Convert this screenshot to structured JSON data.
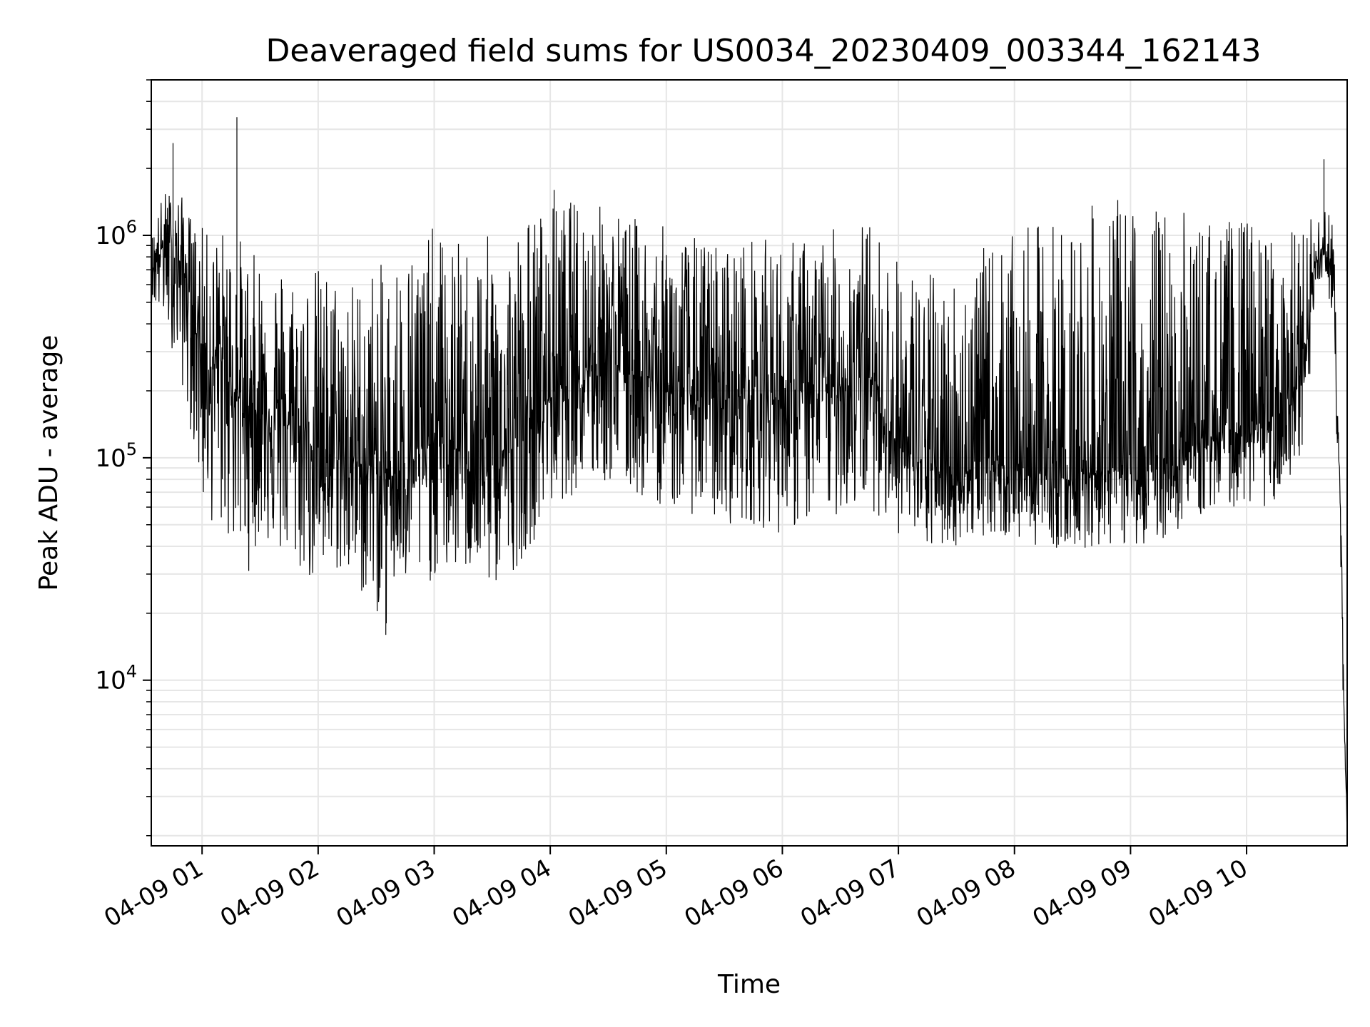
{
  "chart_data": {
    "type": "line",
    "title": "Deaveraged field sums for US0034_20230409_003344_162143",
    "xlabel": "Time",
    "ylabel": "Peak ADU - average",
    "yscale": "log",
    "ylim": [
      1800,
      5000000
    ],
    "xlim": [
      "2023-04-09 00:33:44",
      "2023-04-09 10:52:00"
    ],
    "grid": true,
    "line_color": "#000000",
    "grid_color": "#e6e6e6",
    "x_ticks": [
      {
        "t": "2023-04-09 01:00",
        "label": "04-09 01"
      },
      {
        "t": "2023-04-09 02:00",
        "label": "04-09 02"
      },
      {
        "t": "2023-04-09 03:00",
        "label": "04-09 03"
      },
      {
        "t": "2023-04-09 04:00",
        "label": "04-09 04"
      },
      {
        "t": "2023-04-09 05:00",
        "label": "04-09 05"
      },
      {
        "t": "2023-04-09 06:00",
        "label": "04-09 06"
      },
      {
        "t": "2023-04-09 07:00",
        "label": "04-09 07"
      },
      {
        "t": "2023-04-09 08:00",
        "label": "04-09 08"
      },
      {
        "t": "2023-04-09 09:00",
        "label": "04-09 09"
      },
      {
        "t": "2023-04-09 10:00",
        "label": "04-09 10"
      }
    ],
    "y_ticks": [
      {
        "value": 10000,
        "base": "10",
        "exp": "4"
      },
      {
        "value": 100000,
        "base": "10",
        "exp": "5"
      },
      {
        "value": 1000000,
        "base": "10",
        "exp": "6"
      }
    ],
    "series": [
      {
        "x": [
          "2023-04-09 00:33:44",
          "2023-04-09 00:40",
          "2023-04-09 00:45",
          "2023-04-09 00:50",
          "2023-04-09 00:55",
          "2023-04-09 01:00",
          "2023-04-09 01:05",
          "2023-04-09 01:10",
          "2023-04-09 01:15",
          "2023-04-09 01:20",
          "2023-04-09 01:25",
          "2023-04-09 01:30",
          "2023-04-09 01:40",
          "2023-04-09 01:50",
          "2023-04-09 02:00",
          "2023-04-09 02:10",
          "2023-04-09 02:20",
          "2023-04-09 02:30",
          "2023-04-09 02:35",
          "2023-04-09 02:40",
          "2023-04-09 02:50",
          "2023-04-09 03:00",
          "2023-04-09 03:10",
          "2023-04-09 03:20",
          "2023-04-09 03:30",
          "2023-04-09 03:40",
          "2023-04-09 03:50",
          "2023-04-09 04:00",
          "2023-04-09 04:15",
          "2023-04-09 04:30",
          "2023-04-09 04:45",
          "2023-04-09 05:00",
          "2023-04-09 05:15",
          "2023-04-09 05:30",
          "2023-04-09 05:45",
          "2023-04-09 06:00",
          "2023-04-09 06:15",
          "2023-04-09 06:30",
          "2023-04-09 06:45",
          "2023-04-09 07:00",
          "2023-04-09 07:15",
          "2023-04-09 07:30",
          "2023-04-09 07:45",
          "2023-04-09 08:00",
          "2023-04-09 08:15",
          "2023-04-09 08:30",
          "2023-04-09 08:45",
          "2023-04-09 09:00",
          "2023-04-09 09:15",
          "2023-04-09 09:30",
          "2023-04-09 09:45",
          "2023-04-09 10:00",
          "2023-04-09 10:10",
          "2023-04-09 10:20",
          "2023-04-09 10:30",
          "2023-04-09 10:35",
          "2023-04-09 10:40",
          "2023-04-09 10:43",
          "2023-04-09 10:45",
          "2023-04-09 10:47",
          "2023-04-09 10:49",
          "2023-04-09 10:50",
          "2023-04-09 10:52"
        ],
        "y_center": [
          700000,
          900000,
          850000,
          700000,
          500000,
          300000,
          250000,
          280000,
          220000,
          180000,
          170000,
          160000,
          150000,
          130000,
          110000,
          100000,
          95000,
          90000,
          80000,
          85000,
          100000,
          120000,
          110000,
          100000,
          95000,
          110000,
          150000,
          190000,
          260000,
          280000,
          240000,
          200000,
          190000,
          180000,
          200000,
          180000,
          200000,
          210000,
          230000,
          110000,
          90000,
          80000,
          100000,
          90000,
          85000,
          80000,
          90000,
          85000,
          90000,
          110000,
          130000,
          130000,
          140000,
          170000,
          220000,
          700000,
          900000,
          750000,
          600000,
          150000,
          40000,
          10000,
          2000
        ],
        "y_low": [
          500000,
          400000,
          300000,
          200000,
          120000,
          60000,
          50000,
          45000,
          40000,
          35000,
          30000,
          45000,
          35000,
          30000,
          25000,
          30000,
          25000,
          20000,
          16000,
          25000,
          25000,
          28000,
          30000,
          30000,
          25000,
          30000,
          40000,
          60000,
          70000,
          75000,
          65000,
          60000,
          55000,
          50000,
          50000,
          45000,
          50000,
          55000,
          60000,
          45000,
          38000,
          40000,
          45000,
          42000,
          40000,
          38000,
          40000,
          40000,
          42000,
          50000,
          60000,
          60000,
          60000,
          65000,
          70000,
          500000,
          600000,
          500000,
          400000,
          90000,
          20000,
          7000,
          2000
        ],
        "y_high": [
          1000000,
          1600000,
          1600000,
          1500000,
          1200000,
          1100000,
          1000000,
          1100000,
          1000000,
          1000000,
          800000,
          900000,
          800000,
          700000,
          750000,
          700000,
          650000,
          800000,
          700000,
          900000,
          1000000,
          1100000,
          950000,
          1000000,
          1000000,
          1100000,
          1300000,
          1400000,
          1500000,
          1400000,
          1200000,
          1100000,
          1000000,
          950000,
          1000000,
          950000,
          1000000,
          1100000,
          1200000,
          800000,
          700000,
          700000,
          900000,
          1000000,
          1200000,
          1300000,
          1400000,
          1500000,
          1400000,
          1300000,
          1200000,
          1200000,
          1100000,
          1000000,
          1200000,
          1200000,
          1400000,
          1300000,
          1100000,
          250000,
          60000,
          15000,
          2500
        ]
      }
    ]
  }
}
